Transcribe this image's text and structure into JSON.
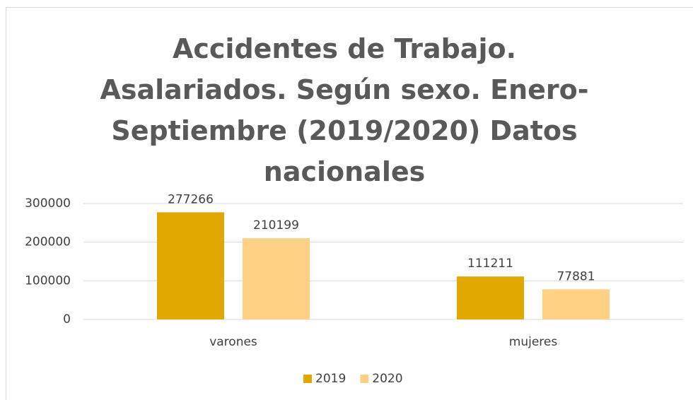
{
  "chart_data": {
    "type": "bar",
    "title": "Accidentes de Trabajo. Asalariados. Según sexo. Enero-Septiembre (2019/2020) Datos nacionales",
    "categories": [
      "varones",
      "mujeres"
    ],
    "series": [
      {
        "name": "2019",
        "color": "#e0a800",
        "values": [
          277266,
          111211
        ]
      },
      {
        "name": "2020",
        "color": "#ffd185",
        "values": [
          210199,
          77881
        ]
      }
    ],
    "ylim": [
      0,
      300000
    ],
    "yticks": [
      0,
      100000,
      200000,
      300000
    ],
    "grid": true,
    "legend": "bottom"
  }
}
